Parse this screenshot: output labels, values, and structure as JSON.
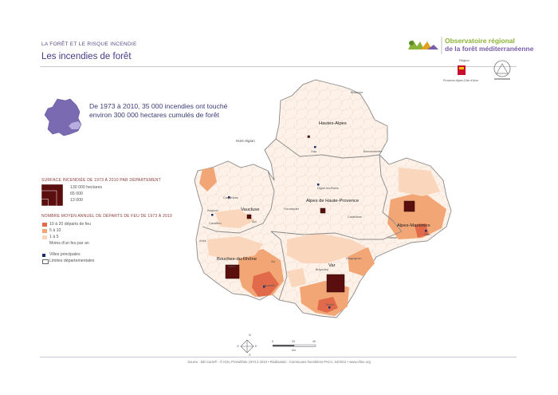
{
  "header": {
    "kicker": "LA FORÊT ET LE RISQUE INCENDIE",
    "title": "Les incendies de forêt"
  },
  "logo": {
    "line1": "Observatoire régional",
    "line2": "de la forêt méditerranéenne"
  },
  "partners": {
    "region_label": "Région",
    "region_name": "Provence-Alpes-Côte d'Azur"
  },
  "intro": {
    "text": "De 1973 à 2010, 35 000 incendies ont touché environ 300 000 hectares cumulés de forêt"
  },
  "legend": {
    "surface_title": "SURFACE INCENDIÉE DE 1973 À 2010 PAR DÉPARTEMENT",
    "surface_values": [
      "130 000 hectares",
      "65 000",
      "13 000"
    ],
    "starts_title": "NOMBRE MOYEN ANNUEL DE DÉPARTS DE FEU DE 1973 À 2010",
    "starts_classes": [
      {
        "label": "10 à 20 départs de feu",
        "color": "#e06a4a"
      },
      {
        "label": "5 à 10",
        "color": "#f2a676"
      },
      {
        "label": "1 à 5",
        "color": "#f9d6bc"
      },
      {
        "label": "Moins d'un feu par an",
        "color": "#fdf1e8"
      }
    ],
    "cities_label": "Villes principales",
    "limits_label": "Limites départementales"
  },
  "map": {
    "outside_label": "Hors région",
    "departments": [
      "Hautes-Alpes",
      "Alpes de Haute-Provence",
      "Vaucluse",
      "Alpes-Maritimes",
      "Bouches-du-Rhône",
      "Var"
    ],
    "towns": [
      "Briançon",
      "Gap",
      "Barcelonnette",
      "Digne-les-Bains",
      "Forcalquier",
      "Castellane",
      "Carpentras",
      "Avignon",
      "Apt",
      "Cavaillon",
      "Arles",
      "Istres",
      "Aix",
      "Marseille",
      "Toulon",
      "Brignoles",
      "Draguignan",
      "Grasse",
      "Nice"
    ],
    "burned_area": {
      "Bouches-du-Rhône": 70000,
      "Var": 130000,
      "Alpes-Maritimes": 40000,
      "Alpes de Haute-Provence": 13000,
      "Vaucluse": 9000,
      "Hautes-Alpes": 2000
    },
    "scale_labels": [
      "0",
      "20",
      "40"
    ],
    "scale_unit": "km",
    "compass": [
      "N",
      "O",
      "E",
      "S"
    ]
  },
  "colors": {
    "accent": "#4a3a86",
    "burn_square": "#5a0e0e",
    "region_fill": "#fdf1e8",
    "border": "#888888"
  },
  "footer": {
    "source": "Source : BD Carto® - © IGN, Prométhée 1973 à 2010 • Réalisation : Communes forestières PACA, 04/2011 • www.ofme.org"
  }
}
